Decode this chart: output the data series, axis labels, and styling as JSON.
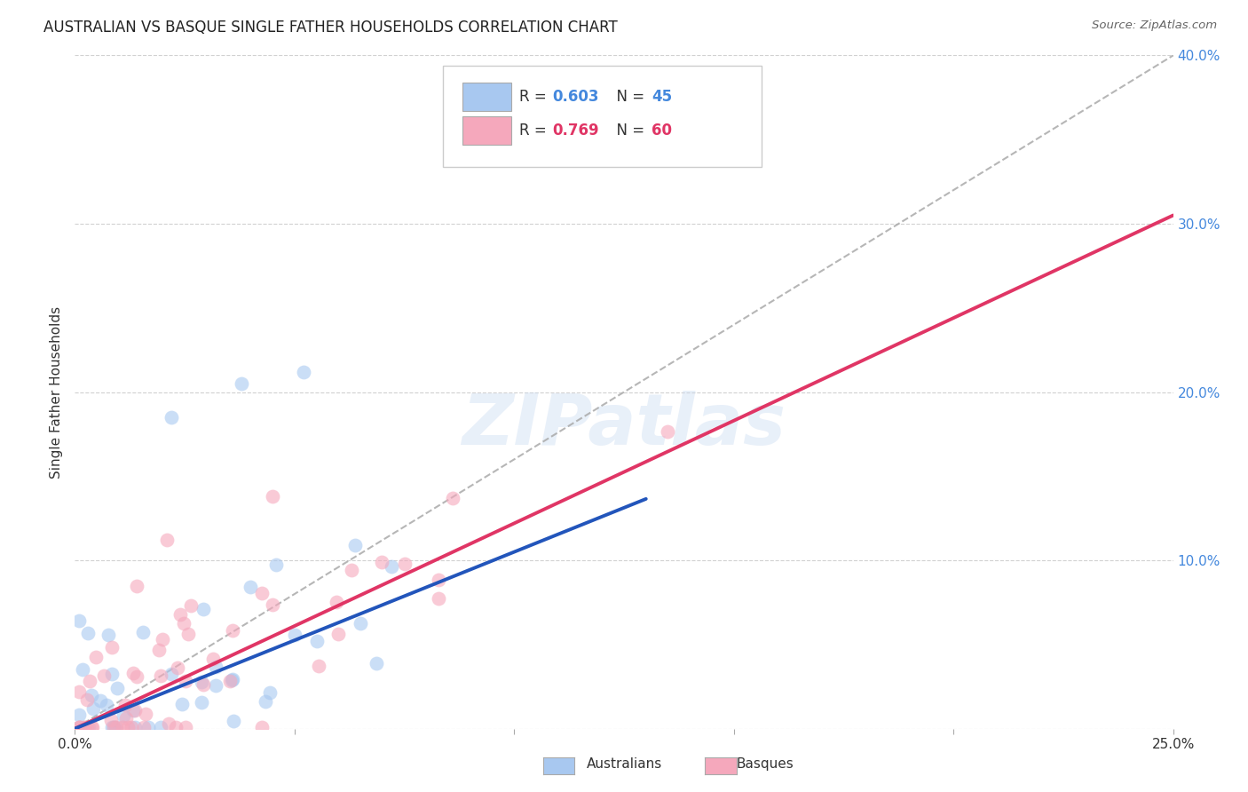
{
  "title": "AUSTRALIAN VS BASQUE SINGLE FATHER HOUSEHOLDS CORRELATION CHART",
  "source": "Source: ZipAtlas.com",
  "ylabel": "Single Father Households",
  "xlim": [
    0.0,
    0.25
  ],
  "ylim": [
    0.0,
    0.4
  ],
  "xtick_positions": [
    0.0,
    0.05,
    0.1,
    0.15,
    0.2,
    0.25
  ],
  "xticklabels": [
    "0.0%",
    "",
    "",
    "",
    "",
    "25.0%"
  ],
  "ytick_positions": [
    0.0,
    0.1,
    0.2,
    0.3,
    0.4
  ],
  "yticklabels_right": [
    "",
    "10.0%",
    "20.0%",
    "30.0%",
    "40.0%"
  ],
  "watermark": "ZIPatlas",
  "aus_color": "#a8c8f0",
  "basque_color": "#f5a8bc",
  "aus_line_color": "#2255bb",
  "basque_line_color": "#e03565",
  "dashed_line_color": "#aaaaaa",
  "grid_color": "#cccccc",
  "background_color": "#ffffff",
  "text_color": "#333333",
  "right_axis_color": "#4488dd",
  "legend_r_color": "#4488dd",
  "legend_r2_color": "#e03565",
  "aus_R": 0.603,
  "aus_N": 45,
  "basque_R": 0.769,
  "basque_N": 60,
  "aus_line_x_end": 0.13,
  "aus_line_slope": 1.05,
  "aus_line_intercept": 0.0,
  "basque_line_slope": 1.22,
  "basque_line_intercept": 0.0,
  "dashed_line_slope": 1.6,
  "dashed_line_intercept": 0.0
}
